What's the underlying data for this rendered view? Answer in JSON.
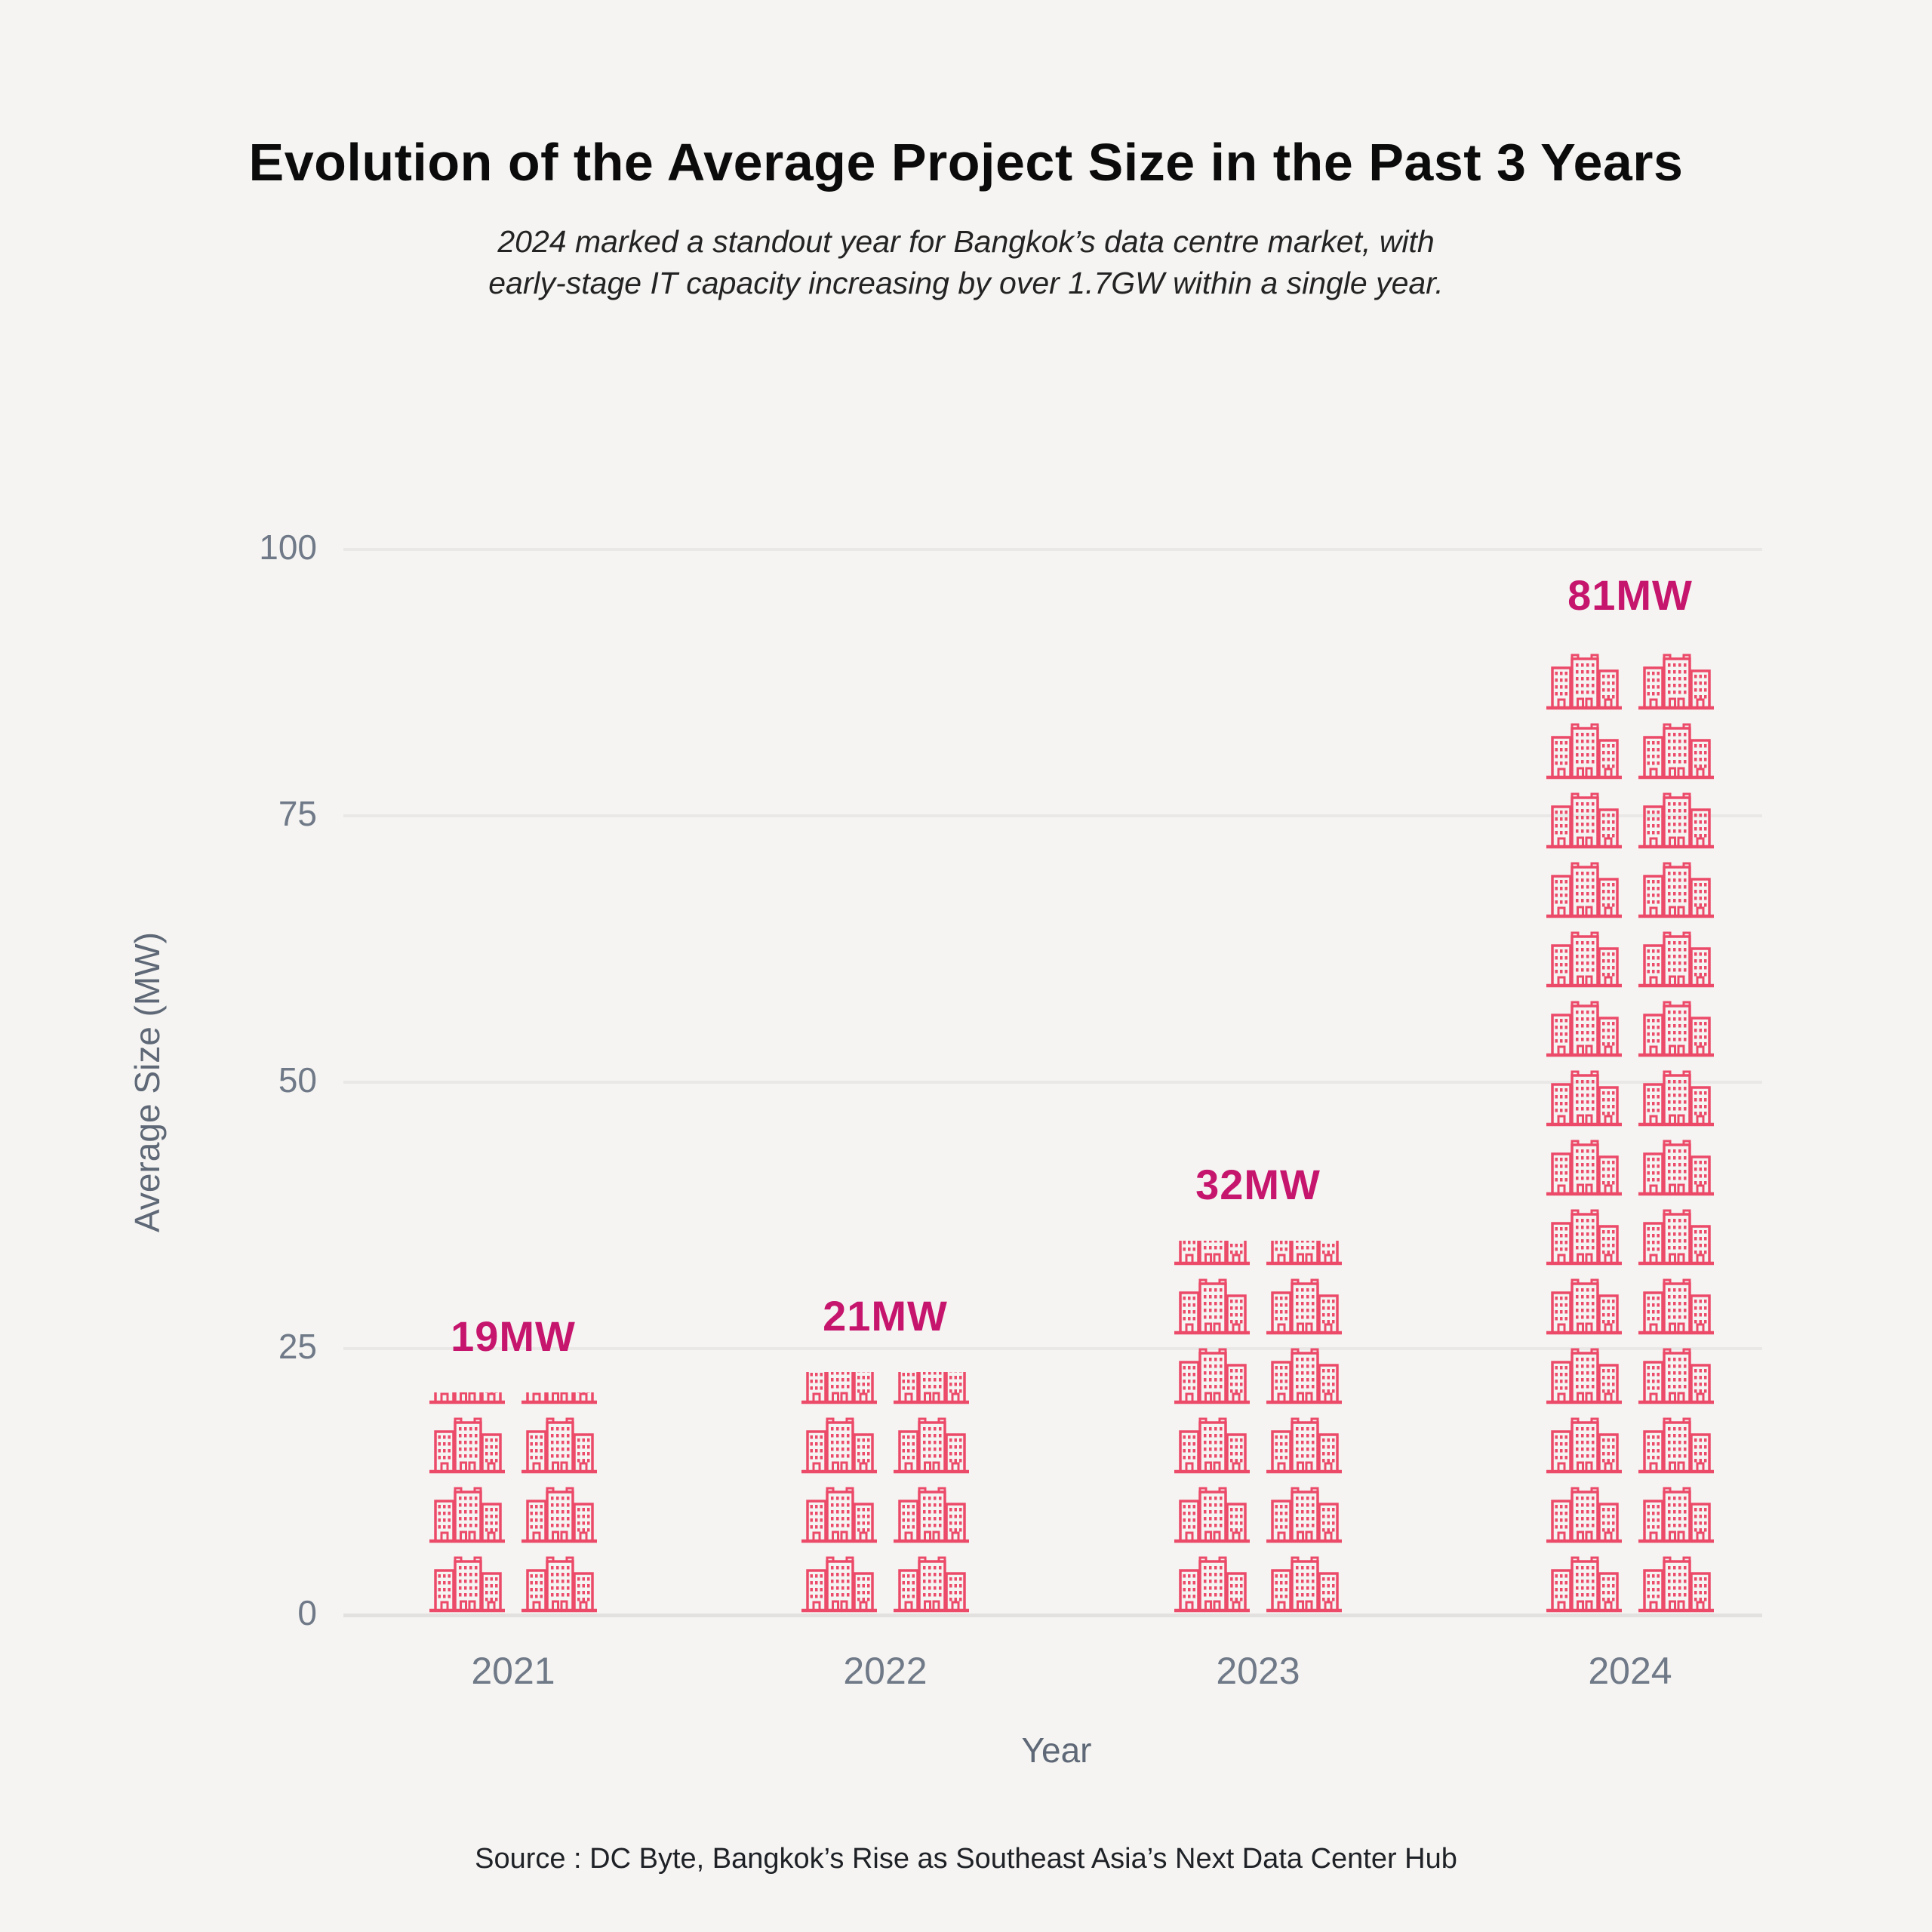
{
  "page": {
    "background": "#f5f4f2"
  },
  "header": {
    "title": "Evolution of the Average Project Size in the Past 3 Years",
    "subtitle_lines": [
      "2024 marked a standout year for Bangkok’s data centre market, with",
      "early-stage IT capacity increasing by over 1.7GW within a single year."
    ]
  },
  "chart_data": {
    "type": "bar",
    "variant": "pictogram",
    "icon": "building-icon",
    "categories": [
      "2021",
      "2022",
      "2023",
      "2024"
    ],
    "values": [
      19,
      21,
      32,
      81
    ],
    "value_labels": [
      "19MW",
      "21MW",
      "32MW",
      "81MW"
    ],
    "series": [
      {
        "name": "Average Size (MW)",
        "values": [
          19,
          21,
          32,
          81
        ]
      }
    ],
    "title": "Evolution of the Average Project Size in the Past 3 Years",
    "xlabel": "Year",
    "ylabel": "Average Size (MW)",
    "ylim": [
      0,
      100
    ],
    "yticks": [
      0,
      25,
      50,
      75,
      100
    ],
    "grid": true,
    "legend": "none",
    "icons_per_row": 2,
    "icon_rows": [
      {
        "full": 3,
        "partial": 0.2
      },
      {
        "full": 3,
        "partial": 0.55
      },
      {
        "full": 5,
        "partial": 0.42
      },
      {
        "full": 14,
        "partial": 0
      }
    ],
    "colors": {
      "icon": "#ec4a69",
      "value_label": "#c6156d",
      "grid": "#e9e8e6",
      "axis_text": "#6f7987",
      "axis_title": "#5e6876"
    }
  },
  "footer": {
    "source": "Source :  DC Byte, Bangkok’s Rise as Southeast Asia’s Next Data Center Hub"
  }
}
